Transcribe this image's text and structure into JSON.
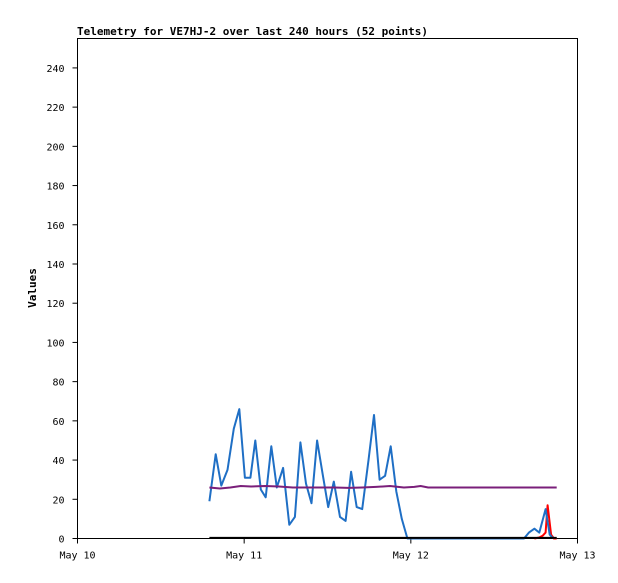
{
  "chart_data": {
    "type": "line",
    "title": "Telemetry for VE7HJ-2 over last 240 hours (52 points)",
    "ylabel": "Values",
    "xlabel": "",
    "ylim": [
      0,
      255
    ],
    "xlim": [
      0,
      72
    ],
    "x_unit": "hours since May 10 00:00",
    "yticks": [
      0,
      20,
      40,
      60,
      80,
      100,
      120,
      140,
      160,
      180,
      200,
      220,
      240
    ],
    "xticks": [
      {
        "label": "May 10",
        "value": 0
      },
      {
        "label": "May 11",
        "value": 24
      },
      {
        "label": "May 12",
        "value": 48
      },
      {
        "label": "May 13",
        "value": 72
      }
    ],
    "grid": false,
    "series": [
      {
        "color": "#ff0000",
        "points": [
          [
            65.8,
            0
          ],
          [
            66.5,
            0.5
          ],
          [
            67.0,
            1.5
          ],
          [
            67.4,
            3
          ],
          [
            67.7,
            17
          ],
          [
            68.2,
            2
          ],
          [
            68.6,
            0
          ],
          [
            69.0,
            0
          ]
        ]
      },
      {
        "color": "#1f6fc5",
        "points": [
          [
            19,
            19
          ],
          [
            19.9,
            43
          ],
          [
            20.7,
            27
          ],
          [
            21.6,
            35
          ],
          [
            22.5,
            56
          ],
          [
            23.3,
            66
          ],
          [
            24.1,
            31
          ],
          [
            24.9,
            31
          ],
          [
            25.6,
            50
          ],
          [
            26.4,
            25
          ],
          [
            27.1,
            21
          ],
          [
            27.9,
            47
          ],
          [
            28.7,
            26
          ],
          [
            29.6,
            36
          ],
          [
            30.5,
            7
          ],
          [
            31.3,
            11
          ],
          [
            32.1,
            49
          ],
          [
            32.9,
            28
          ],
          [
            33.7,
            18
          ],
          [
            34.5,
            50
          ],
          [
            35.3,
            33
          ],
          [
            36.1,
            16
          ],
          [
            36.9,
            29
          ],
          [
            37.8,
            11
          ],
          [
            38.6,
            9
          ],
          [
            39.4,
            34
          ],
          [
            40.2,
            16
          ],
          [
            41.0,
            15
          ],
          [
            41.9,
            40
          ],
          [
            42.7,
            63
          ],
          [
            43.5,
            30
          ],
          [
            44.3,
            32
          ],
          [
            45.1,
            47
          ],
          [
            45.9,
            24
          ],
          [
            46.7,
            10
          ],
          [
            47.5,
            0
          ],
          [
            48.3,
            0
          ],
          [
            50.0,
            0
          ],
          [
            53.0,
            0
          ],
          [
            55.0,
            0
          ],
          [
            58.0,
            0
          ],
          [
            61.0,
            0
          ],
          [
            63.0,
            0
          ],
          [
            64.3,
            0
          ],
          [
            65.0,
            3
          ],
          [
            65.8,
            5
          ],
          [
            66.5,
            3
          ],
          [
            67.4,
            15
          ],
          [
            68.0,
            2
          ],
          [
            68.5,
            0
          ]
        ]
      },
      {
        "color": "#7a1f7a",
        "points": [
          [
            19,
            26
          ],
          [
            20.5,
            25.5
          ],
          [
            22,
            26
          ],
          [
            23.5,
            26.8
          ],
          [
            25,
            26.5
          ],
          [
            27,
            26.8
          ],
          [
            29,
            26.5
          ],
          [
            31,
            26
          ],
          [
            33,
            26
          ],
          [
            35,
            26
          ],
          [
            37,
            26
          ],
          [
            39,
            25.8
          ],
          [
            41,
            26
          ],
          [
            43,
            26.3
          ],
          [
            45,
            26.8
          ],
          [
            47,
            26
          ],
          [
            48.5,
            26.3
          ],
          [
            49.4,
            26.8
          ],
          [
            50.5,
            26
          ],
          [
            54,
            26
          ],
          [
            58,
            26
          ],
          [
            62,
            26
          ],
          [
            66,
            26
          ],
          [
            69,
            26
          ]
        ]
      },
      {
        "color": "#000000",
        "points": [
          [
            19,
            0.3
          ],
          [
            30,
            0.3
          ],
          [
            40,
            0.3
          ],
          [
            50,
            0.3
          ],
          [
            60,
            0.3
          ],
          [
            69,
            0.3
          ]
        ]
      }
    ]
  }
}
